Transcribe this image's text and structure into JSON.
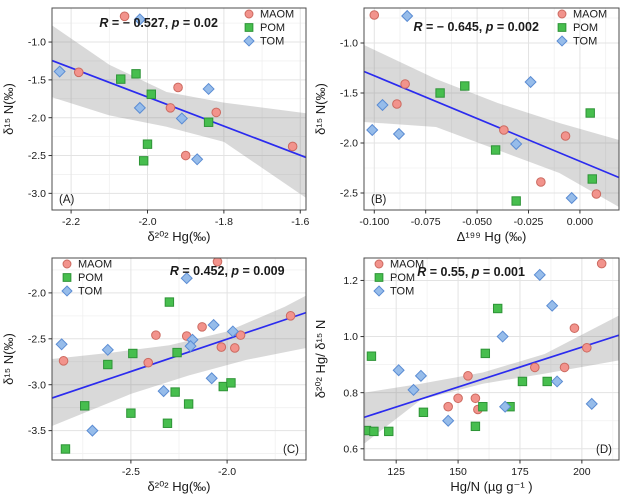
{
  "figure": {
    "background": "#ffffff",
    "grid_major_color": "#e3e3e3",
    "grid_minor_color": "#f0f0f0",
    "border_color": "#4d4d4d",
    "tick_color": "#333333",
    "text_color": "#1a1a1a",
    "regression_color": "#2b2bef",
    "band_color": "#808080",
    "band_opacity": 0.3,
    "series_styles": {
      "MAOM": {
        "shape": "circle",
        "fill": "#f2938c",
        "stroke": "#cc6a60"
      },
      "POM": {
        "shape": "square",
        "fill": "#47be4e",
        "stroke": "#2e9437"
      },
      "TOM": {
        "shape": "diamond",
        "fill": "#96bcea",
        "stroke": "#5b8cd3"
      }
    }
  },
  "chart_data": [
    {
      "id": "A",
      "type": "scatter",
      "panel_label": "(A)",
      "panel_label_pos": "bottom-left",
      "annotation": {
        "parts": [
          [
            "R",
            true
          ],
          [
            " = − 0.527, ",
            false
          ],
          [
            "p",
            true
          ],
          [
            " = 0.02",
            false
          ]
        ],
        "fx": 0.42,
        "fy": 0.075
      },
      "xlabel": "δ²⁰² Hg(‰)",
      "ylabel": "δ¹⁵ N(‰)",
      "xlim": [
        -2.25,
        -1.585
      ],
      "ylim": [
        -3.22,
        -0.55
      ],
      "xticks": {
        "values": [
          -2.2,
          -2.0,
          -1.8,
          -1.6
        ],
        "labels": [
          "-2.2",
          "-2.0",
          "-1.8",
          "-1.6"
        ]
      },
      "yticks": {
        "values": [
          -1.0,
          -1.5,
          -2.0,
          -2.5,
          -3.0
        ],
        "labels": [
          "-1.0",
          "-1.5",
          "-2.0",
          "-2.5",
          "-3.0"
        ]
      },
      "legend": {
        "position": "top-right",
        "labels": [
          "MAOM",
          "POM",
          "TOM"
        ]
      },
      "regression": [
        [
          -2.25,
          -1.245
        ],
        [
          -1.585,
          -2.525
        ]
      ],
      "band": [
        [
          -2.25,
          -0.78
        ],
        [
          -2.1,
          -1.3
        ],
        [
          -1.95,
          -1.66
        ],
        [
          -1.8,
          -1.8
        ],
        [
          -1.585,
          -1.94
        ],
        [
          -1.585,
          -3.06
        ],
        [
          -1.8,
          -2.32
        ],
        [
          -1.95,
          -2.12
        ],
        [
          -2.1,
          -1.97
        ],
        [
          -2.25,
          -1.73
        ]
      ],
      "series": [
        {
          "name": "MAOM",
          "points": [
            [
              -2.06,
              -0.66
            ],
            [
              -2.18,
              -1.4
            ],
            [
              -1.92,
              -1.6
            ],
            [
              -1.94,
              -1.87
            ],
            [
              -1.82,
              -1.93
            ],
            [
              -1.9,
              -2.5
            ],
            [
              -1.62,
              -2.38
            ]
          ]
        },
        {
          "name": "POM",
          "points": [
            [
              -2.07,
              -1.49
            ],
            [
              -2.03,
              -1.42
            ],
            [
              -1.99,
              -1.69
            ],
            [
              -1.84,
              -2.06
            ],
            [
              -2.0,
              -2.35
            ],
            [
              -2.01,
              -2.57
            ]
          ]
        },
        {
          "name": "TOM",
          "points": [
            [
              -2.02,
              -0.7
            ],
            [
              -2.23,
              -1.39
            ],
            [
              -2.02,
              -1.87
            ],
            [
              -1.91,
              -2.01
            ],
            [
              -1.84,
              -1.62
            ],
            [
              -1.87,
              -2.55
            ]
          ]
        }
      ]
    },
    {
      "id": "B",
      "type": "scatter",
      "panel_label": "(B)",
      "panel_label_pos": "bottom-left",
      "annotation": {
        "parts": [
          [
            "R",
            true
          ],
          [
            " = − 0.645, ",
            false
          ],
          [
            "p",
            true
          ],
          [
            " = 0.002",
            false
          ]
        ],
        "fx": 0.44,
        "fy": 0.095
      },
      "xlabel": "Δ¹⁹⁹ Hg (‰)",
      "ylabel": "δ¹⁵ N(‰)",
      "xlim": [
        -0.105,
        0.019
      ],
      "ylim": [
        -2.67,
        -0.65
      ],
      "xticks": {
        "values": [
          -0.1,
          -0.075,
          -0.05,
          -0.025,
          0.0
        ],
        "labels": [
          "-0.100",
          "-0.075",
          "-0.050",
          "-0.025",
          "0.000"
        ]
      },
      "yticks": {
        "values": [
          -1.0,
          -1.5,
          -2.0,
          -2.5
        ],
        "labels": [
          "-1.0",
          "-1.5",
          "-2.0",
          "-2.5"
        ]
      },
      "legend": {
        "position": "top-right",
        "labels": [
          "MAOM",
          "POM",
          "TOM"
        ]
      },
      "regression": [
        [
          -0.105,
          -1.285
        ],
        [
          0.019,
          -2.345
        ]
      ],
      "band": [
        [
          -0.105,
          -1.02
        ],
        [
          -0.07,
          -1.36
        ],
        [
          -0.04,
          -1.6
        ],
        [
          -0.01,
          -1.8
        ],
        [
          0.019,
          -1.97
        ],
        [
          0.019,
          -2.64
        ],
        [
          -0.01,
          -2.3
        ],
        [
          -0.04,
          -2.07
        ],
        [
          -0.07,
          -1.84
        ],
        [
          -0.105,
          -1.79
        ]
      ],
      "series": [
        {
          "name": "MAOM",
          "points": [
            [
              -0.1,
              -0.72
            ],
            [
              -0.085,
              -1.41
            ],
            [
              -0.089,
              -1.61
            ],
            [
              -0.037,
              -1.87
            ],
            [
              -0.007,
              -1.93
            ],
            [
              -0.019,
              -2.39
            ],
            [
              0.008,
              -2.51
            ]
          ]
        },
        {
          "name": "POM",
          "points": [
            [
              -0.068,
              -1.5
            ],
            [
              -0.056,
              -1.43
            ],
            [
              -0.041,
              -2.07
            ],
            [
              0.005,
              -1.7
            ],
            [
              0.006,
              -2.36
            ],
            [
              -0.031,
              -2.58
            ]
          ]
        },
        {
          "name": "TOM",
          "points": [
            [
              -0.084,
              -0.73
            ],
            [
              -0.096,
              -1.62
            ],
            [
              -0.101,
              -1.87
            ],
            [
              -0.088,
              -1.91
            ],
            [
              -0.024,
              -1.39
            ],
            [
              -0.031,
              -2.01
            ],
            [
              -0.004,
              -2.55
            ]
          ]
        }
      ]
    },
    {
      "id": "C",
      "type": "scatter",
      "panel_label": "(C)",
      "panel_label_pos": "bottom-right",
      "annotation": {
        "parts": [
          [
            "R",
            true
          ],
          [
            " = 0.452, ",
            false
          ],
          [
            "p",
            true
          ],
          [
            " = 0.009",
            false
          ]
        ],
        "fx": 0.69,
        "fy": 0.065
      },
      "xlabel": "δ²⁰² Hg(‰)",
      "ylabel": "δ¹⁵ N(‰)",
      "xlim": [
        -2.91,
        -1.59
      ],
      "ylim": [
        -3.82,
        -1.62
      ],
      "xticks": {
        "values": [
          -2.5,
          -2.0
        ],
        "labels": [
          "-2.5",
          "-2.0"
        ]
      },
      "yticks": {
        "values": [
          -2.0,
          -2.5,
          -3.0,
          -3.5
        ],
        "labels": [
          "-2.0",
          "-2.5",
          "-3.0",
          "-3.5"
        ]
      },
      "legend": {
        "position": "top-left",
        "labels": [
          "MAOM",
          "POM",
          "TOM"
        ]
      },
      "regression": [
        [
          -2.91,
          -3.145
        ],
        [
          -1.59,
          -2.215
        ]
      ],
      "band": [
        [
          -2.91,
          -2.72
        ],
        [
          -2.6,
          -2.65
        ],
        [
          -2.3,
          -2.57
        ],
        [
          -2.0,
          -2.42
        ],
        [
          -1.7,
          -2.15
        ],
        [
          -1.59,
          -2.03
        ],
        [
          -1.59,
          -2.6
        ],
        [
          -1.9,
          -2.73
        ],
        [
          -2.2,
          -2.9
        ],
        [
          -2.5,
          -3.1
        ],
        [
          -2.91,
          -3.45
        ]
      ],
      "series": [
        {
          "name": "MAOM",
          "points": [
            [
              -2.05,
              -1.66
            ],
            [
              -1.67,
              -2.25
            ],
            [
              -2.13,
              -2.37
            ],
            [
              -2.37,
              -2.46
            ],
            [
              -2.21,
              -2.47
            ],
            [
              -1.93,
              -2.46
            ],
            [
              -2.03,
              -2.59
            ],
            [
              -1.96,
              -2.6
            ],
            [
              -2.85,
              -2.74
            ],
            [
              -2.41,
              -2.76
            ]
          ]
        },
        {
          "name": "POM",
          "points": [
            [
              -2.3,
              -2.1
            ],
            [
              -2.49,
              -2.66
            ],
            [
              -2.26,
              -2.65
            ],
            [
              -2.62,
              -2.78
            ],
            [
              -2.74,
              -3.23
            ],
            [
              -2.5,
              -3.31
            ],
            [
              -2.31,
              -3.42
            ],
            [
              -2.27,
              -3.08
            ],
            [
              -2.2,
              -3.21
            ],
            [
              -2.02,
              -3.02
            ],
            [
              -1.98,
              -2.98
            ],
            [
              -2.84,
              -3.7
            ]
          ]
        },
        {
          "name": "TOM",
          "points": [
            [
              -2.21,
              -1.84
            ],
            [
              -2.86,
              -2.56
            ],
            [
              -2.62,
              -2.62
            ],
            [
              -2.07,
              -2.35
            ],
            [
              -1.97,
              -2.42
            ],
            [
              -2.18,
              -2.51
            ],
            [
              -2.19,
              -2.58
            ],
            [
              -2.08,
              -2.93
            ],
            [
              -2.33,
              -3.07
            ],
            [
              -2.7,
              -3.5
            ]
          ]
        }
      ]
    },
    {
      "id": "D",
      "type": "scatter",
      "panel_label": "(D)",
      "panel_label_pos": "bottom-right",
      "annotation": {
        "parts": [
          [
            "R",
            true
          ],
          [
            " = 0.55, ",
            false
          ],
          [
            "p",
            true
          ],
          [
            " = 0.001",
            false
          ]
        ],
        "fx": 0.42,
        "fy": 0.07
      },
      "xlabel": "Hg/N (µg g⁻¹ )",
      "ylabel": "δ²⁰² Hg/ δ¹⁵ N",
      "xlim": [
        112,
        215
      ],
      "ylim": [
        0.56,
        1.28
      ],
      "xticks": {
        "values": [
          125,
          150,
          175,
          200
        ],
        "labels": [
          "125",
          "150",
          "175",
          "200"
        ]
      },
      "yticks": {
        "values": [
          0.6,
          0.8,
          1.0,
          1.2
        ],
        "labels": [
          "0.6",
          "0.8",
          "1.0",
          "1.2"
        ]
      },
      "legend": {
        "position": "top-left",
        "labels": [
          "MAOM",
          "POM",
          "TOM"
        ]
      },
      "regression": [
        [
          112,
          0.712
        ],
        [
          215,
          1.005
        ]
      ],
      "band": [
        [
          112,
          0.8
        ],
        [
          135,
          0.832
        ],
        [
          160,
          0.872
        ],
        [
          185,
          0.938
        ],
        [
          215,
          1.075
        ],
        [
          215,
          0.915
        ],
        [
          185,
          0.868
        ],
        [
          160,
          0.832
        ],
        [
          135,
          0.775
        ],
        [
          112,
          0.618
        ]
      ],
      "series": [
        {
          "name": "MAOM",
          "points": [
            [
              208,
              1.26
            ],
            [
              197,
              1.03
            ],
            [
              202,
              0.96
            ],
            [
              181,
              0.89
            ],
            [
              193,
              0.89
            ],
            [
              154,
              0.86
            ],
            [
              150,
              0.78
            ],
            [
              157,
              0.78
            ],
            [
              146,
              0.75
            ],
            [
              158,
              0.74
            ]
          ]
        },
        {
          "name": "POM",
          "points": [
            [
              115,
              0.93
            ],
            [
              166,
              1.1
            ],
            [
              161,
              0.94
            ],
            [
              176,
              0.84
            ],
            [
              186,
              0.84
            ],
            [
              171,
              0.75
            ],
            [
              160,
              0.75
            ],
            [
              136,
              0.73
            ],
            [
              157,
              0.68
            ],
            [
              113,
              0.665
            ],
            [
              116,
              0.662
            ],
            [
              122,
              0.662
            ]
          ]
        },
        {
          "name": "TOM",
          "points": [
            [
              183,
              1.22
            ],
            [
              188,
              1.11
            ],
            [
              168,
              1.0
            ],
            [
              126,
              0.88
            ],
            [
              135,
              0.86
            ],
            [
              132,
              0.81
            ],
            [
              190,
              0.84
            ],
            [
              169,
              0.75
            ],
            [
              146,
              0.7
            ],
            [
              204,
              0.76
            ]
          ]
        }
      ]
    }
  ]
}
